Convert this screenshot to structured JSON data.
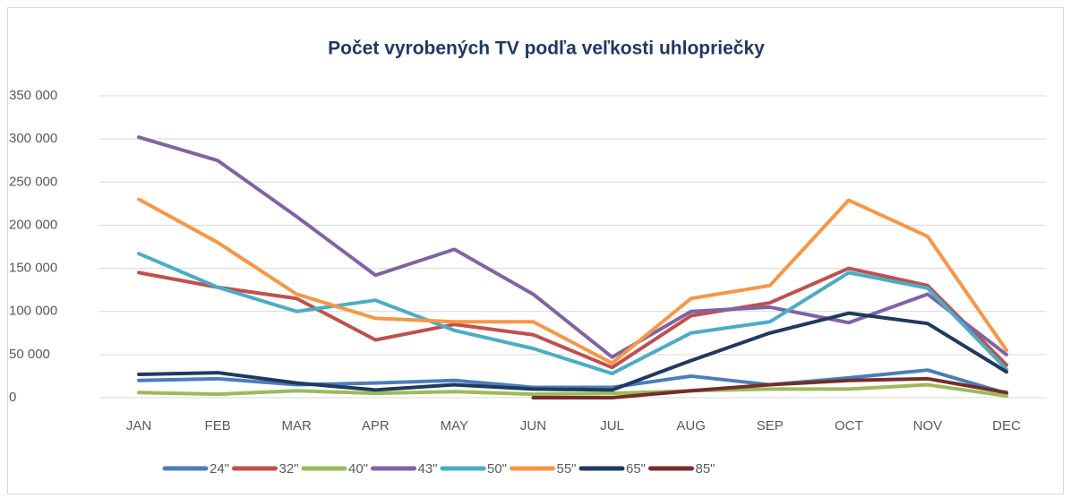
{
  "chart_data": {
    "type": "line",
    "title": "Počet vyrobených TV podľa veľkosti uhlopriečky",
    "categories": [
      "JAN",
      "FEB",
      "MAR",
      "APR",
      "MAY",
      "JUN",
      "JUL",
      "AUG",
      "SEP",
      "OCT",
      "NOV",
      "DEC"
    ],
    "series": [
      {
        "name": "24\"",
        "color": "#4a7ebb",
        "values": [
          20000,
          22000,
          15000,
          17000,
          20000,
          12000,
          12000,
          25000,
          15000,
          23000,
          32000,
          5000
        ]
      },
      {
        "name": "32\"",
        "color": "#c0504d",
        "values": [
          145000,
          128000,
          115000,
          67000,
          85000,
          73000,
          35000,
          95000,
          110000,
          150000,
          130000,
          38000
        ]
      },
      {
        "name": "40\"",
        "color": "#9bbb59",
        "values": [
          6000,
          4000,
          8000,
          5000,
          7000,
          4000,
          5000,
          8000,
          10000,
          10000,
          15000,
          2000
        ]
      },
      {
        "name": "43\"",
        "color": "#8064a2",
        "values": [
          302000,
          275000,
          210000,
          142000,
          172000,
          120000,
          47000,
          100000,
          105000,
          87000,
          120000,
          50000
        ]
      },
      {
        "name": "50\"",
        "color": "#4bacc6",
        "values": [
          167000,
          128000,
          100000,
          113000,
          78000,
          57000,
          28000,
          75000,
          88000,
          145000,
          127000,
          33000
        ]
      },
      {
        "name": "55\"",
        "color": "#f79646",
        "values": [
          230000,
          180000,
          120000,
          92000,
          88000,
          88000,
          40000,
          115000,
          130000,
          229000,
          187000,
          55000
        ]
      },
      {
        "name": "65\"",
        "color": "#1f3a5f",
        "values": [
          27000,
          29000,
          17000,
          9000,
          15000,
          10000,
          9000,
          43000,
          75000,
          98000,
          86000,
          30000
        ]
      },
      {
        "name": "85\"",
        "color": "#772c2a",
        "values": [
          null,
          null,
          null,
          null,
          null,
          0,
          0,
          8000,
          15000,
          20000,
          22000,
          6000
        ]
      }
    ],
    "ylim": [
      0,
      350000
    ],
    "yticks": [
      0,
      {
        "value": 50000,
        "label": "50 000"
      },
      {
        "value": 100000,
        "label": "100 000"
      },
      {
        "value": 150000,
        "label": "150 000"
      },
      {
        "value": 200000,
        "label": "200 000"
      },
      {
        "value": 250000,
        "label": "250 000"
      },
      {
        "value": 300000,
        "label": "300 000"
      },
      {
        "value": 350000,
        "label": "350 000"
      }
    ],
    "grid": true
  }
}
